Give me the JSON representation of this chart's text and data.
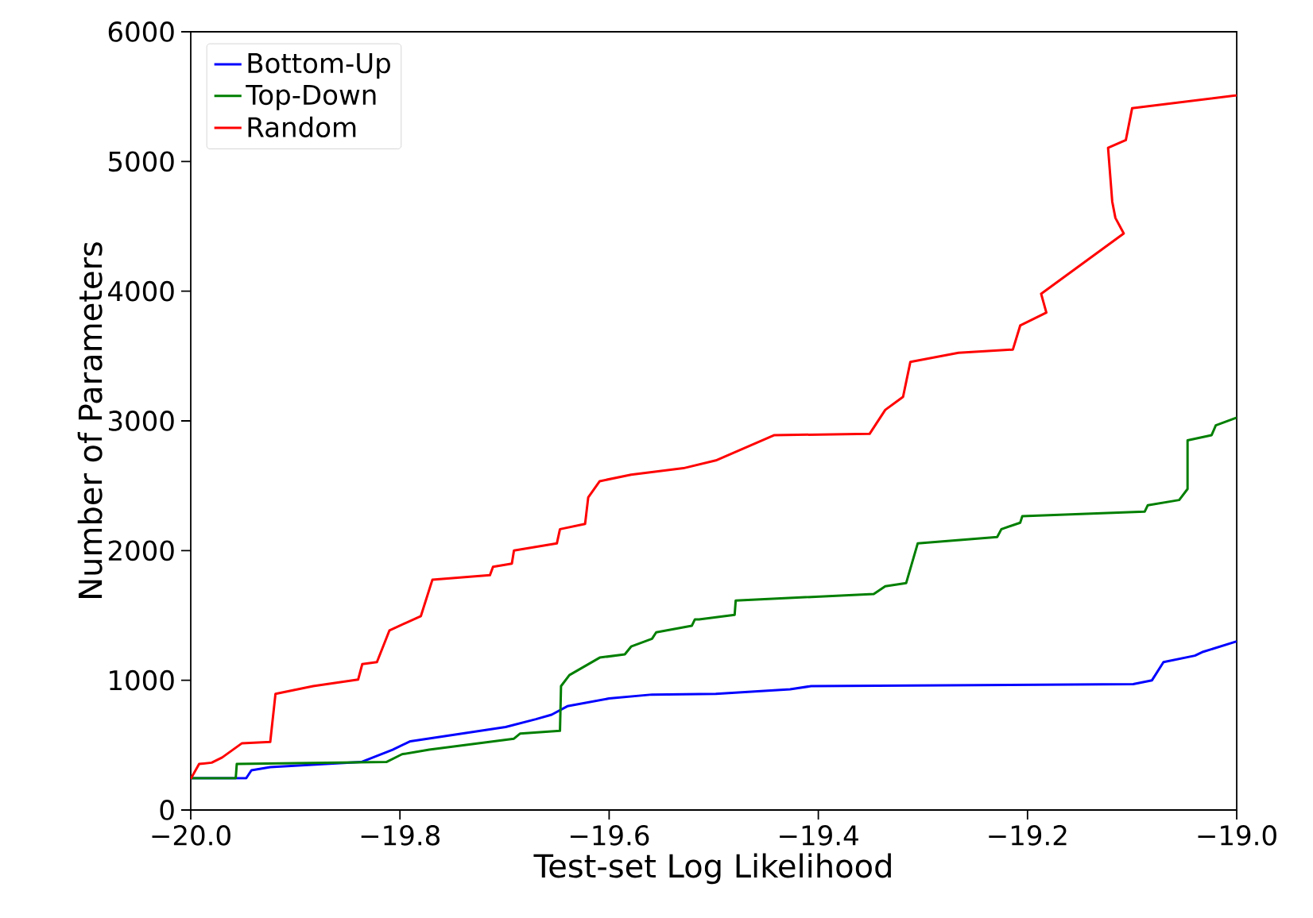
{
  "chart_data": {
    "type": "line",
    "xlabel": "Test-set Log Likelihood",
    "ylabel": "Number of Parameters",
    "xlim": [
      -20,
      -19
    ],
    "ylim": [
      0,
      6000
    ],
    "xticks": [
      {
        "value": -20,
        "label": "−20.0"
      },
      {
        "value": -19.8,
        "label": "−19.8"
      },
      {
        "value": -19.6,
        "label": "−19.6"
      },
      {
        "value": -19.4,
        "label": "−19.4"
      },
      {
        "value": -19.2,
        "label": "−19.2"
      },
      {
        "value": -19,
        "label": "−19.0"
      }
    ],
    "yticks": [
      0,
      1000,
      2000,
      3000,
      4000,
      5000,
      6000
    ],
    "legend": "top left",
    "marker": "none",
    "line_style": "solid",
    "series": [
      {
        "name": "Bottom-Up",
        "color": "#0000ff",
        "x": [
          -20,
          -19.947,
          -19.942,
          -19.924,
          -19.837,
          -19.807,
          -19.79,
          -19.699,
          -19.67,
          -19.655,
          -19.64,
          -19.6,
          -19.559,
          -19.498,
          -19.427,
          -19.407,
          -19.099,
          -19.081,
          -19.07,
          -19.04,
          -19.032,
          -19.0
        ],
        "values": [
          245,
          245,
          306,
          330,
          370,
          465,
          530,
          640,
          700,
          735,
          800,
          860,
          890,
          895,
          930,
          955,
          970,
          1000,
          1140,
          1190,
          1220,
          1300
        ]
      },
      {
        "name": "Top-Down",
        "color": "#007f00",
        "x": [
          -20,
          -19.957,
          -19.956,
          -19.813,
          -19.798,
          -19.772,
          -19.691,
          -19.685,
          -19.647,
          -19.646,
          -19.638,
          -19.609,
          -19.585,
          -19.579,
          -19.559,
          -19.555,
          -19.521,
          -19.518,
          -19.514,
          -19.48,
          -19.479,
          -19.347,
          -19.336,
          -19.316,
          -19.305,
          -19.229,
          -19.225,
          -19.207,
          -19.205,
          -19.088,
          -19.085,
          -19.055,
          -19.047,
          -19.047,
          -19.024,
          -19.02,
          -19.0
        ],
        "values": [
          245,
          245,
          355,
          370,
          430,
          465,
          550,
          590,
          610,
          955,
          1040,
          1175,
          1200,
          1260,
          1320,
          1370,
          1420,
          1470,
          1470,
          1505,
          1615,
          1665,
          1725,
          1750,
          2055,
          2105,
          2165,
          2215,
          2265,
          2300,
          2350,
          2390,
          2475,
          2850,
          2890,
          2965,
          3025
        ]
      },
      {
        "name": "Random",
        "color": "#ff0000",
        "x": [
          -20,
          -19.992,
          -19.98,
          -19.97,
          -19.951,
          -19.924,
          -19.919,
          -19.883,
          -19.84,
          -19.836,
          -19.822,
          -19.81,
          -19.78,
          -19.769,
          -19.714,
          -19.711,
          -19.693,
          -19.691,
          -19.65,
          -19.647,
          -19.623,
          -19.62,
          -19.609,
          -19.579,
          -19.529,
          -19.498,
          -19.442,
          -19.351,
          -19.336,
          -19.319,
          -19.312,
          -19.266,
          -19.214,
          -19.207,
          -19.182,
          -19.187,
          -19.108,
          -19.116,
          -19.119,
          -19.123,
          -19.106,
          -19.1,
          -19.0
        ],
        "values": [
          240,
          355,
          365,
          405,
          515,
          525,
          895,
          955,
          1005,
          1125,
          1140,
          1385,
          1495,
          1775,
          1810,
          1875,
          1900,
          2000,
          2055,
          2165,
          2205,
          2410,
          2535,
          2585,
          2635,
          2695,
          2890,
          2900,
          3085,
          3185,
          3455,
          3525,
          3550,
          3735,
          3835,
          3980,
          4445,
          4565,
          4690,
          5105,
          5165,
          5410,
          5510
        ]
      }
    ]
  }
}
